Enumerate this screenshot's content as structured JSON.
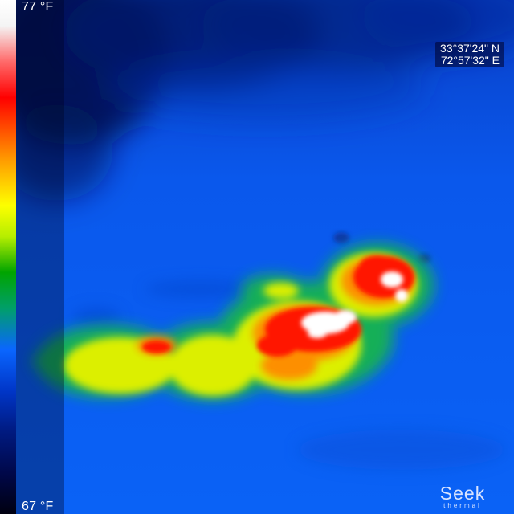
{
  "app": {
    "brand_name": "Seek",
    "brand_sub": "thermal"
  },
  "scale": {
    "max_label": "77 °F",
    "min_label": "67 °F",
    "palette": "rainbow"
  },
  "location": {
    "latitude": "33°37'24\" N",
    "longitude": "72°57'32\" E"
  },
  "colors": {
    "background_blue": "#0a5ff0",
    "cold_dark": "#001a7a",
    "warm_yellow": "#e0f000",
    "hot_red": "#ff1a00",
    "hottest_white": "#ffffff"
  }
}
